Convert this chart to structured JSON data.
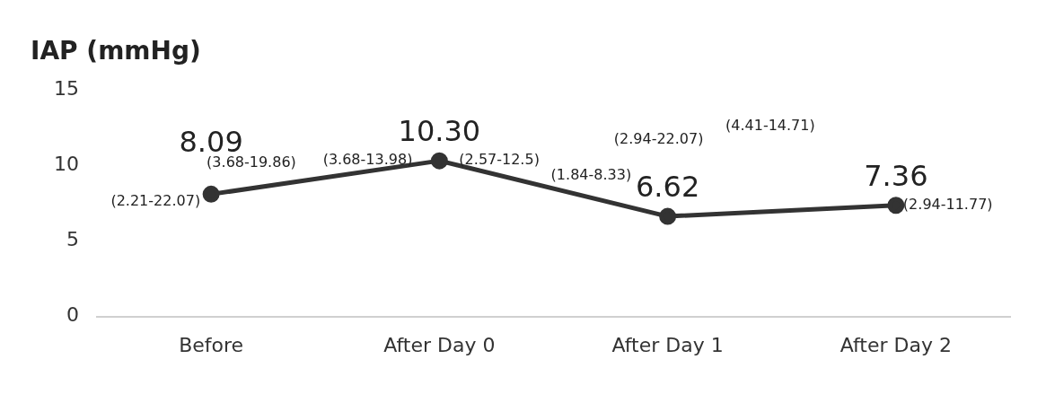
{
  "chart_data": {
    "type": "line",
    "title": "IAP (mmHg)",
    "categories": [
      "Before",
      "After Day 0",
      "After Day 1",
      "After Day 2"
    ],
    "series": [
      {
        "color": "#333333",
        "values": [
          8.09,
          10.3,
          6.62,
          7.36
        ]
      }
    ],
    "value_labels": [
      "8.09",
      "10.30",
      "6.62",
      "7.36"
    ],
    "ylim": [
      0,
      15
    ],
    "yticks": [
      0,
      5,
      10,
      15
    ],
    "grid": false,
    "legend": false,
    "marker": "circle",
    "line_style": "solid",
    "annotations": [
      "(2.21-22.07)",
      "(3.68-19.86)",
      "(3.68-13.98)",
      "(2.57-12.5)",
      "(1.84-8.33)",
      "(2.94-22.07)",
      "(4.41-14.71)",
      "(2.94-11.77)"
    ]
  }
}
